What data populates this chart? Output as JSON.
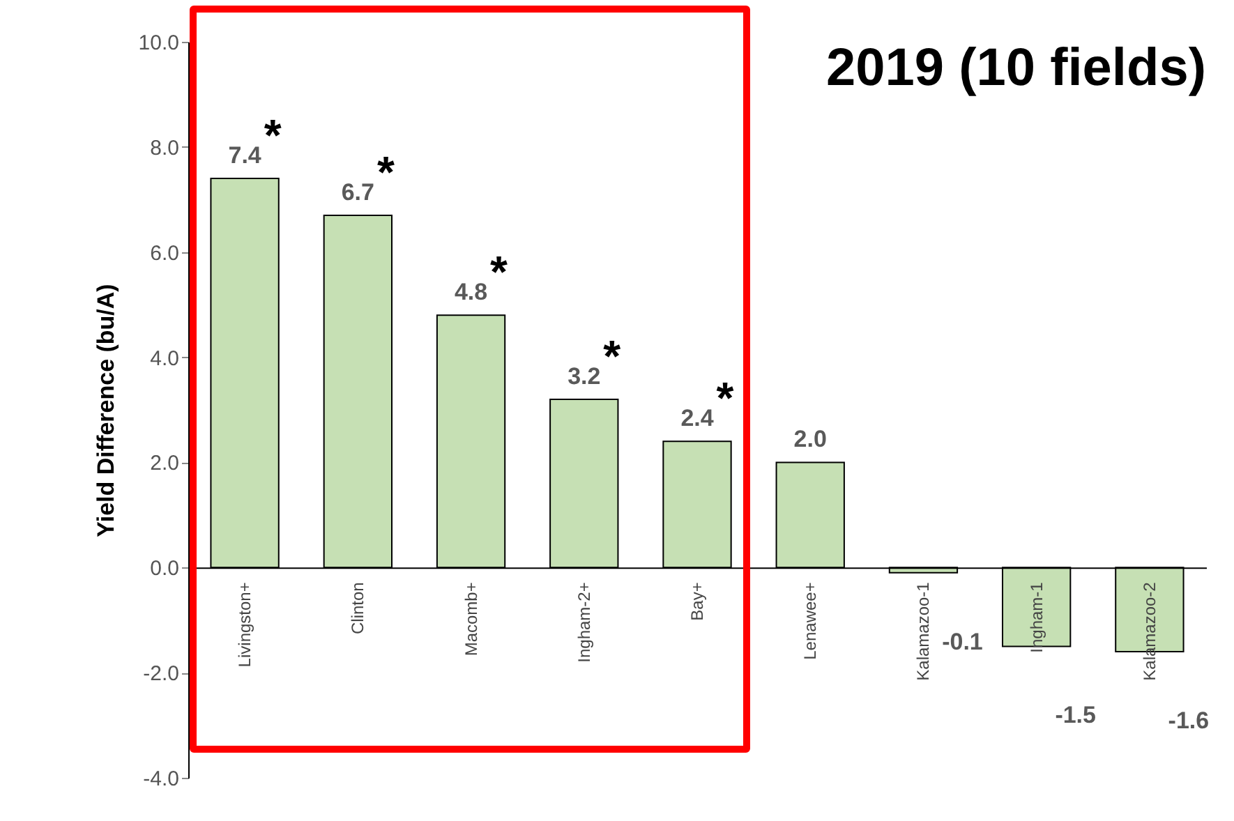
{
  "chart_data": {
    "type": "bar",
    "title": "2019 (10 fields)",
    "ylabel": "Yield Difference (bu/A)",
    "categories": [
      "Livingston+",
      "Clinton",
      "Macomb+",
      "Ingham-2+",
      "Bay+",
      "Lenawee+",
      "Kalamazoo-1",
      "Ingham-1",
      "Kalamazoo-2"
    ],
    "values": [
      7.4,
      6.7,
      4.8,
      3.2,
      2.4,
      2.0,
      -0.1,
      -1.5,
      -1.6
    ],
    "color": "#c6e0b4",
    "value_labels": [
      "7.4",
      "6.7",
      "4.8",
      "3.2",
      "2.4",
      "2.0",
      "-0.1",
      "-1.5",
      "-1.6"
    ],
    "grid": false,
    "ylim": [
      -4,
      10
    ],
    "yticks": [
      {
        "value": -4,
        "label": "-4.0"
      },
      {
        "value": -2,
        "label": "-2.0"
      },
      {
        "value": 0,
        "label": "0.0"
      },
      {
        "value": 2,
        "label": "2.0"
      },
      {
        "value": 4,
        "label": "4.0"
      },
      {
        "value": 6,
        "label": "6.0"
      },
      {
        "value": 8,
        "label": "8.0"
      },
      {
        "value": 10,
        "label": "10.0"
      }
    ],
    "annotations": [
      {
        "text": "*",
        "x": "Livingston+",
        "y": 7.4
      },
      {
        "text": "*",
        "x": "Clinton",
        "y": 6.7
      },
      {
        "text": "*",
        "x": "Macomb+",
        "y": 4.8
      },
      {
        "text": "*",
        "x": "Ingham-2+",
        "y": 3.2
      },
      {
        "text": "*",
        "x": "Bay+",
        "y": 2.4
      }
    ]
  }
}
